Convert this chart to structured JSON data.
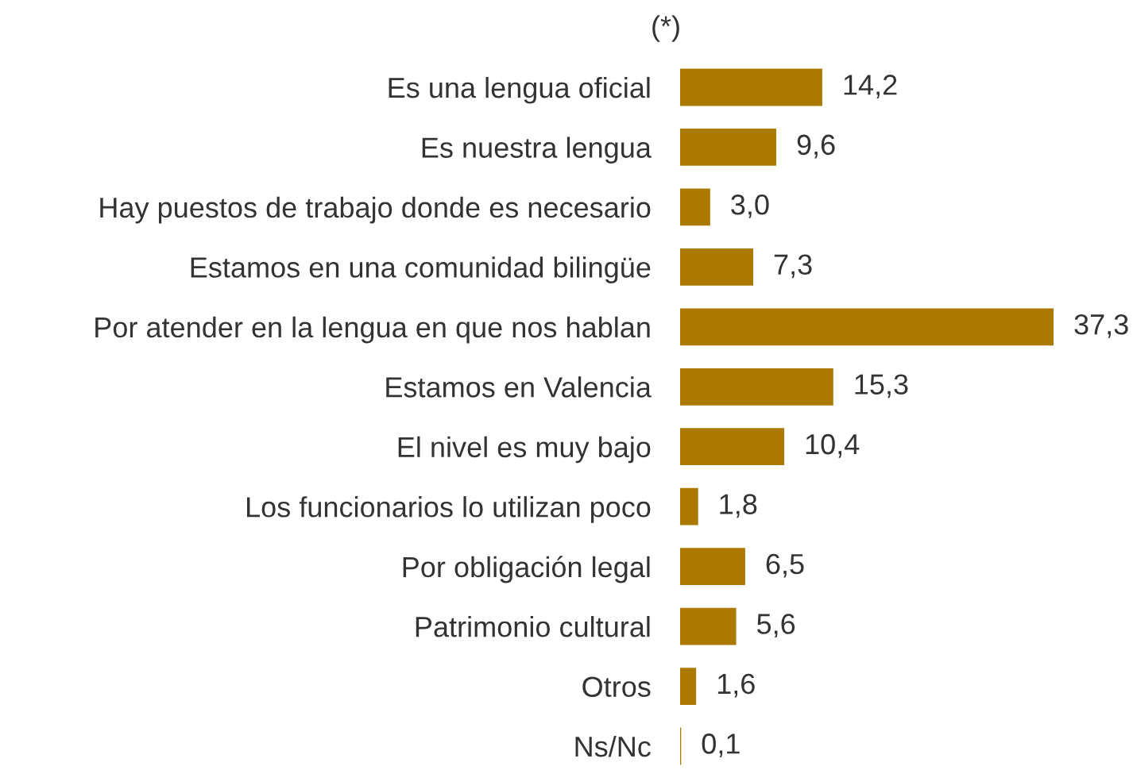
{
  "chart_data": {
    "type": "bar",
    "orientation": "horizontal",
    "title": "(*)",
    "categories": [
      "Es una lengua oficial",
      "Es nuestra lengua",
      "Hay puestos de trabajo donde es necesario",
      "Estamos en una comunidad bilingüe",
      "Por atender en la lengua en que nos hablan",
      "Estamos en Valencia",
      "El nivel es muy bajo",
      "Los funcionarios lo utilizan poco",
      "Por obligación legal",
      "Patrimonio cultural",
      "Otros",
      "Ns/Nc"
    ],
    "values": [
      14.2,
      9.6,
      3.0,
      7.3,
      37.3,
      15.3,
      10.4,
      1.8,
      6.5,
      5.6,
      1.6,
      0.1
    ],
    "color": "#ab7800",
    "value_labels": [
      "14,2",
      "9,6",
      "3,0",
      "7,3",
      "37,3",
      "15,3",
      "10,4",
      "1,8",
      "6,5",
      "5,6",
      "1,6",
      "0,1"
    ]
  }
}
